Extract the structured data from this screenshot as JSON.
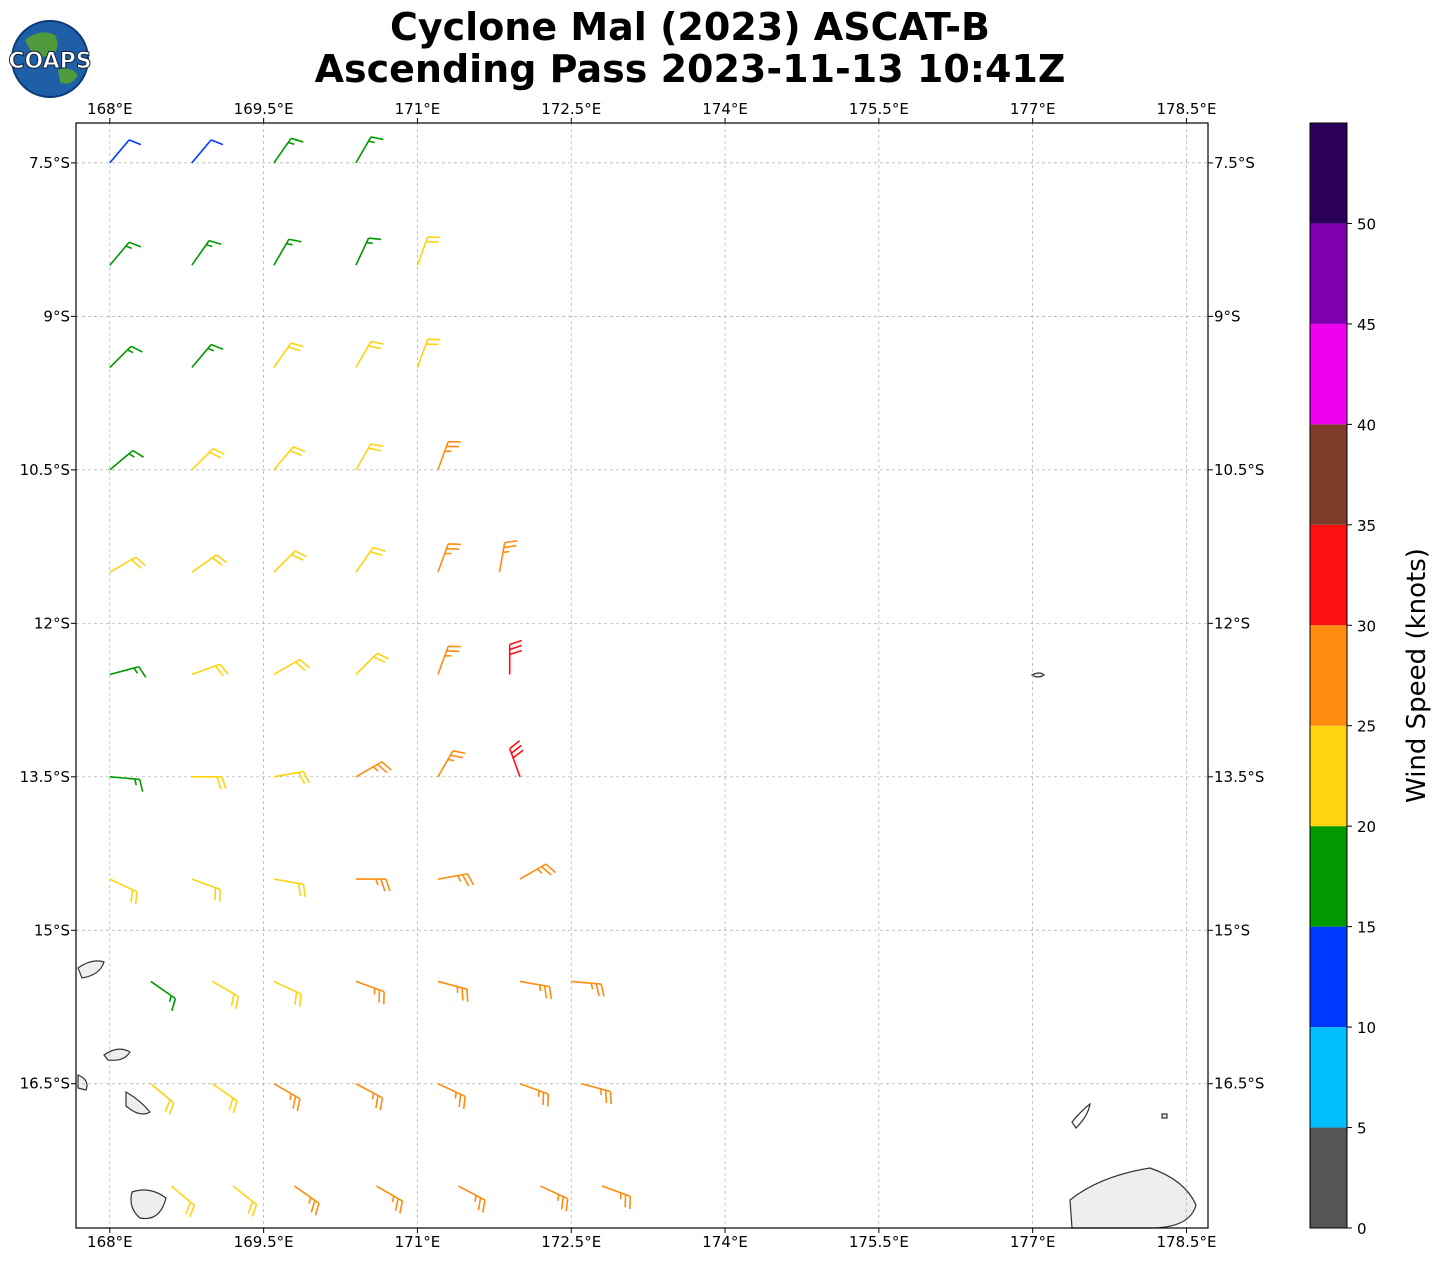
{
  "chart_data": {
    "type": "barbs",
    "title": "Cyclone Mal (2023) ASCAT-B",
    "subtitle": "Ascending Pass 2023-11-13 10:41Z",
    "logo_text": "COAPS",
    "xlim": [
      167.67,
      178.71
    ],
    "ylim": [
      -17.91,
      -7.11
    ],
    "xticks": [
      {
        "value": 168,
        "label": "168°E"
      },
      {
        "value": 169.5,
        "label": "169.5°E"
      },
      {
        "value": 171,
        "label": "171°E"
      },
      {
        "value": 172.5,
        "label": "172.5°E"
      },
      {
        "value": 174,
        "label": "174°E"
      },
      {
        "value": 175.5,
        "label": "175.5°E"
      },
      {
        "value": 177,
        "label": "177°E"
      },
      {
        "value": 178.5,
        "label": "178.5°E"
      }
    ],
    "yticks": [
      {
        "value": -7.5,
        "label": "7.5°S"
      },
      {
        "value": -9,
        "label": "9°S"
      },
      {
        "value": -10.5,
        "label": "10.5°S"
      },
      {
        "value": -12,
        "label": "12°S"
      },
      {
        "value": -13.5,
        "label": "13.5°S"
      },
      {
        "value": -15,
        "label": "15°S"
      },
      {
        "value": -16.5,
        "label": "16.5°S"
      }
    ],
    "grid": true,
    "colorbar": {
      "label": "Wind Speed (knots)",
      "bounds": [
        0,
        5,
        10,
        15,
        20,
        25,
        30,
        35,
        40,
        45,
        50,
        55
      ],
      "colors": [
        "#555555",
        "#00bfff",
        "#0038ff",
        "#009900",
        "#ffd310",
        "#ff8c0f",
        "#ff1010",
        "#7f3c2a",
        "#f000f0",
        "#8000b0",
        "#2c0059"
      ],
      "ticks": [
        0,
        5,
        10,
        15,
        20,
        25,
        30,
        35,
        40,
        45,
        50
      ]
    },
    "barbs": {
      "lon": [
        168.0,
        168.8,
        169.6,
        170.4,
        168.0,
        168.8,
        169.6,
        170.4,
        171.0,
        168.0,
        168.8,
        169.6,
        170.4,
        171.0,
        168.0,
        168.8,
        169.6,
        170.4,
        171.2,
        168.0,
        168.8,
        169.6,
        170.4,
        171.2,
        171.8,
        168.0,
        168.8,
        169.6,
        170.4,
        171.2,
        171.9,
        168.0,
        168.8,
        169.6,
        170.4,
        171.2,
        172.0,
        168.0,
        168.8,
        169.6,
        170.4,
        171.2,
        172.0,
        168.4,
        169.0,
        169.6,
        170.4,
        171.2,
        172.0,
        172.5,
        168.4,
        169.0,
        169.6,
        170.4,
        171.2,
        172.0,
        172.6,
        168.6,
        169.2,
        169.8,
        170.6,
        171.4,
        172.2,
        172.8
      ],
      "lat": [
        -7.5,
        -7.5,
        -7.5,
        -7.5,
        -8.5,
        -8.5,
        -8.5,
        -8.5,
        -8.5,
        -9.5,
        -9.5,
        -9.5,
        -9.5,
        -9.5,
        -10.5,
        -10.5,
        -10.5,
        -10.5,
        -10.5,
        -11.5,
        -11.5,
        -11.5,
        -11.5,
        -11.5,
        -11.5,
        -12.5,
        -12.5,
        -12.5,
        -12.5,
        -12.5,
        -12.5,
        -13.5,
        -13.5,
        -13.5,
        -13.5,
        -13.5,
        -13.5,
        -14.5,
        -14.5,
        -14.5,
        -14.5,
        -14.5,
        -14.5,
        -15.5,
        -15.5,
        -15.5,
        -15.5,
        -15.5,
        -15.5,
        -15.5,
        -16.5,
        -16.5,
        -16.5,
        -16.5,
        -16.5,
        -16.5,
        -16.5,
        -17.5,
        -17.5,
        -17.5,
        -17.5,
        -17.5,
        -17.5,
        -17.5
      ],
      "speed": [
        12,
        12,
        17,
        17,
        17,
        17,
        18,
        18,
        22,
        17,
        18,
        22,
        23,
        23,
        18,
        22,
        23,
        23,
        27,
        22,
        23,
        23,
        24,
        27,
        28,
        18,
        22,
        23,
        24,
        28,
        33,
        18,
        22,
        23,
        27,
        28,
        33,
        22,
        23,
        24,
        27,
        27,
        28,
        17,
        22,
        24,
        27,
        27,
        28,
        28,
        22,
        23,
        27,
        27,
        28,
        28,
        28,
        23,
        23,
        27,
        27,
        28,
        28,
        27
      ],
      "dir": [
        40,
        40,
        35,
        30,
        40,
        35,
        30,
        25,
        20,
        45,
        40,
        35,
        30,
        20,
        50,
        45,
        40,
        30,
        20,
        60,
        55,
        45,
        35,
        20,
        10,
        75,
        70,
        60,
        45,
        20,
        0,
        95,
        90,
        80,
        60,
        30,
        340,
        115,
        110,
        100,
        90,
        80,
        60,
        125,
        120,
        115,
        110,
        105,
        100,
        95,
        130,
        125,
        120,
        118,
        115,
        110,
        105,
        130,
        128,
        125,
        120,
        118,
        115,
        110
      ]
    }
  }
}
